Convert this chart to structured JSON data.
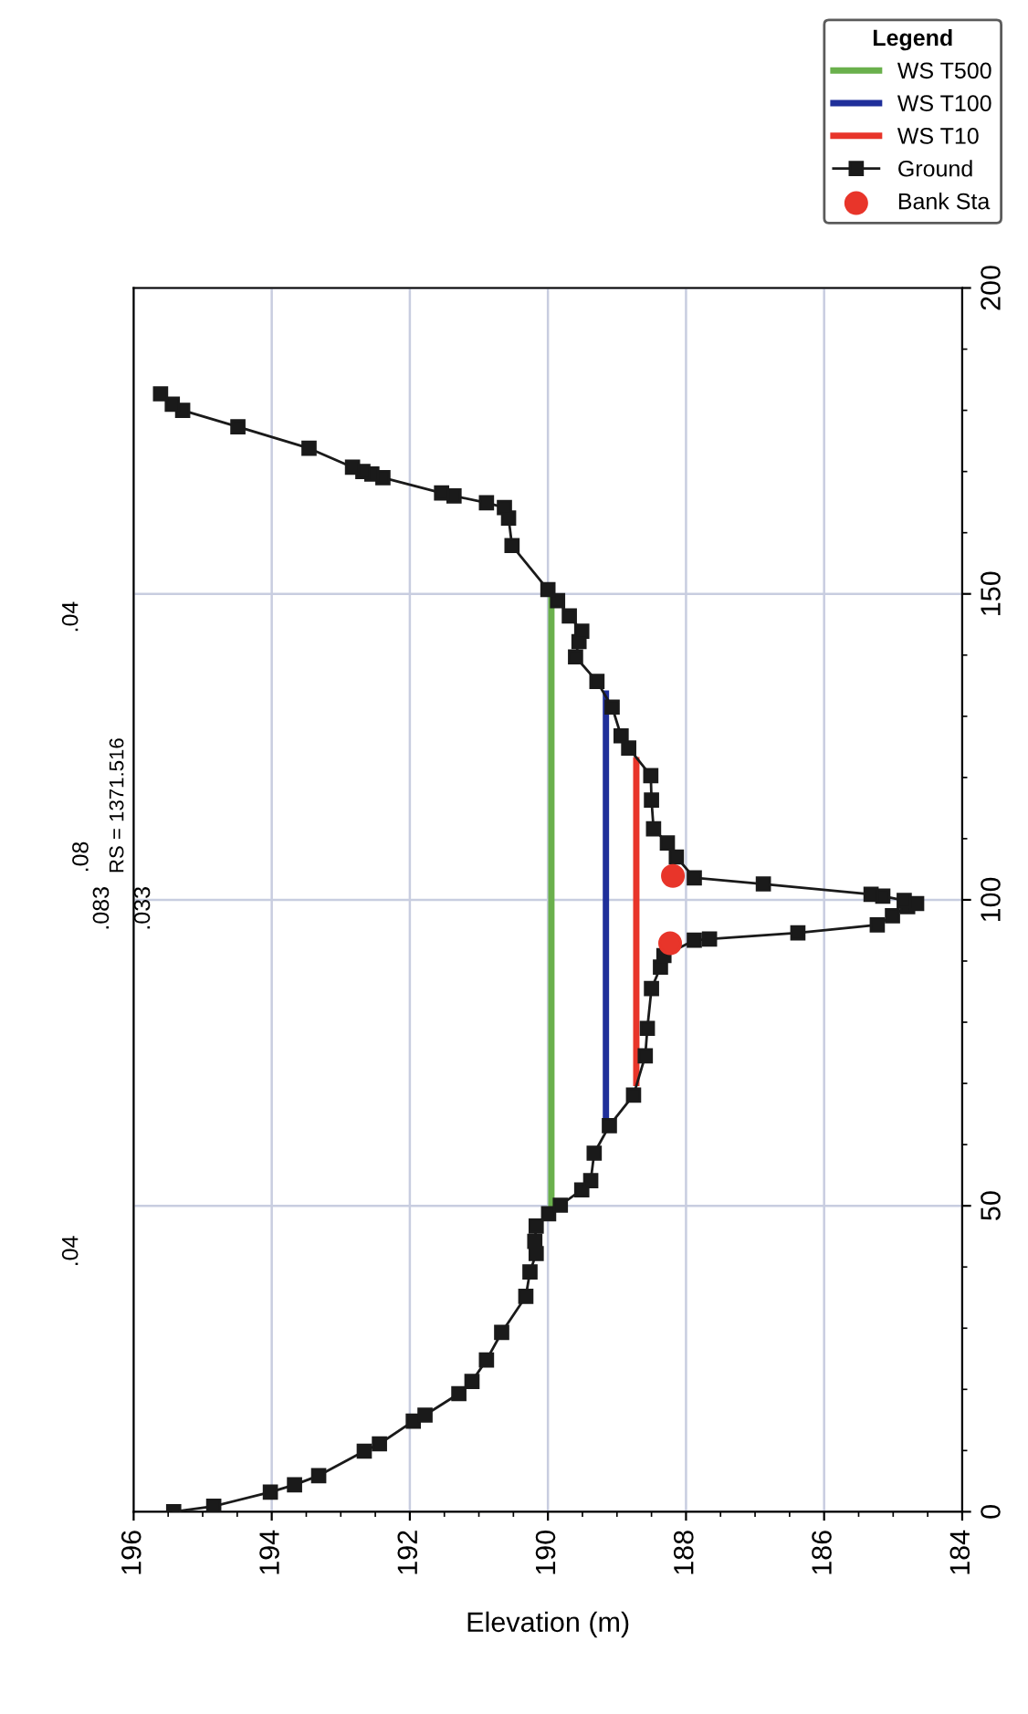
{
  "chart_data": {
    "type": "line",
    "xlabel": "Elevation (m)",
    "legend_title": "Legend",
    "annotations": [
      "RS = 1371.516",
      ".04",
      ".083",
      ".033",
      ".08",
      ".04"
    ],
    "xlim": [
      196,
      184
    ],
    "xticks": [
      196,
      194,
      192,
      190,
      188,
      186,
      184
    ],
    "ylim": [
      0,
      200
    ],
    "yticks": [
      0,
      50,
      100,
      150,
      200
    ],
    "grid": true,
    "legend": "top right",
    "series": [
      {
        "name": "WS T500",
        "color": "#6ab04c",
        "values": [
          48.7,
          150.7
        ],
        "x": [
          189.95,
          189.95
        ],
        "marker": "none"
      },
      {
        "name": "WS T100",
        "color": "#1f2f9a",
        "values": [
          63.1,
          133.7
        ],
        "x": [
          189.16,
          189.16
        ],
        "marker": "none"
      },
      {
        "name": "WS T10",
        "color": "#e8352a",
        "values": [
          70.1,
          122.8
        ],
        "x": [
          188.72,
          188.72
        ],
        "marker": "none"
      },
      {
        "name": "Ground",
        "color": "#1a1a1a",
        "marker": "square",
        "values": [
          0,
          0.9,
          3.2,
          4.4,
          5.9,
          9.9,
          11.1,
          14.8,
          15.8,
          19.3,
          21.3,
          24.8,
          29.3,
          35.2,
          39.2,
          42.2,
          44.2,
          46.7,
          48.7,
          50.1,
          52.6,
          54.1,
          58.6,
          63.1,
          68.1,
          74.5,
          79,
          85.5,
          89,
          90.9,
          93.4,
          93.6,
          94.6,
          95.9,
          97.4,
          98.9,
          99.4,
          99.9,
          100.6,
          100.9,
          102.6,
          103.6,
          107,
          109.3,
          111.6,
          116.3,
          120.3,
          124.8,
          126.8,
          131.5,
          135.7,
          139.7,
          142.2,
          143.9,
          146.4,
          148.9,
          150.7,
          157.9,
          162.4,
          164.1,
          164.9,
          166,
          166.5,
          169,
          169.6,
          170,
          170.7,
          173.8,
          177.3,
          180,
          181,
          182.7
        ],
        "x": [
          195.42,
          194.84,
          194.02,
          193.67,
          193.32,
          192.66,
          192.44,
          191.95,
          191.78,
          191.29,
          191.1,
          190.89,
          190.67,
          190.32,
          190.26,
          190.17,
          190.19,
          190.17,
          189.99,
          189.82,
          189.51,
          189.38,
          189.33,
          189.11,
          188.76,
          188.59,
          188.56,
          188.5,
          188.37,
          188.32,
          187.88,
          187.66,
          186.38,
          185.23,
          185.01,
          184.79,
          184.66,
          184.84,
          185.15,
          185.32,
          186.88,
          187.88,
          188.14,
          188.27,
          188.47,
          188.5,
          188.51,
          188.83,
          188.94,
          189.07,
          189.29,
          189.6,
          189.55,
          189.51,
          189.69,
          189.86,
          190.0,
          190.52,
          190.57,
          190.63,
          190.89,
          191.36,
          191.54,
          192.39,
          192.55,
          192.68,
          192.83,
          193.46,
          194.49,
          195.29,
          195.44,
          195.61
        ]
      },
      {
        "name": "Bank Sta",
        "color": "#e8352a",
        "type": "scatter",
        "marker": "circle",
        "values": [
          92.9,
          103.9
        ],
        "x": [
          188.23,
          188.19
        ]
      }
    ]
  }
}
